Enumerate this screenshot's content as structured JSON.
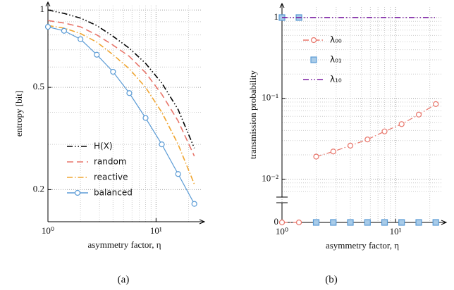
{
  "chart_data": [
    {
      "type": "line",
      "label": "(a)",
      "xlabel": "asymmetry factor, η",
      "ylabel": "entropy [bit]",
      "xscale": "log",
      "yscale": "log",
      "grid": true,
      "legend": "lower left",
      "x": [
        1,
        1.41,
        2,
        2.83,
        4,
        5.66,
        8,
        11.3,
        16,
        22.6
      ],
      "xlim": [
        1,
        26
      ],
      "xticks": [
        {
          "value": 1,
          "label": "10⁰"
        },
        {
          "value": 10,
          "label": "10¹"
        }
      ],
      "ylim": [
        0.15,
        1.04
      ],
      "yticks": [
        0.2,
        0.5,
        1
      ],
      "series": [
        {
          "name": "H(X)",
          "color": "#000000",
          "dash": "8,3,1.5,3,1.5,3",
          "marker": null,
          "values": [
            1.0,
            0.97,
            0.93,
            0.87,
            0.79,
            0.71,
            0.62,
            0.52,
            0.41,
            0.29
          ]
        },
        {
          "name": "random",
          "color": "#e8756a",
          "dash": "9,5",
          "marker": null,
          "values": [
            0.91,
            0.89,
            0.86,
            0.8,
            0.73,
            0.66,
            0.57,
            0.47,
            0.37,
            0.27
          ]
        },
        {
          "name": "reactive",
          "color": "#f0a530",
          "dash": "8,3,1.5,3",
          "marker": null,
          "values": [
            0.87,
            0.85,
            0.81,
            0.75,
            0.67,
            0.59,
            0.5,
            0.4,
            0.3,
            0.21
          ]
        },
        {
          "name": "balanced",
          "color": "#5b9bd5",
          "dash": null,
          "marker": "circle",
          "values": [
            0.86,
            0.83,
            0.77,
            0.67,
            0.575,
            0.475,
            0.38,
            0.3,
            0.23,
            0.176
          ]
        }
      ]
    },
    {
      "type": "line",
      "label": "(b)",
      "xlabel": "asymmetry factor, η",
      "ylabel": "transmission probability",
      "xscale": "log",
      "yscale": "log",
      "y_break": true,
      "grid": true,
      "legend": "upper center",
      "x": [
        1,
        1.41,
        2,
        2.83,
        4,
        5.66,
        8,
        11.3,
        16,
        22.6
      ],
      "xlim": [
        1,
        26
      ],
      "xticks": [
        {
          "value": 1,
          "label": "10⁰"
        },
        {
          "value": 10,
          "label": "10¹"
        }
      ],
      "ylim": [
        0.0065,
        1.35
      ],
      "yticks": [
        0,
        {
          "value": 0.01,
          "label": "10⁻²"
        },
        {
          "value": 0.1,
          "label": "10⁻¹"
        },
        1
      ],
      "series": [
        {
          "name": "λ₀₀",
          "color": "#e8756a",
          "dash": "8,3,1.5,3",
          "marker": "circle",
          "values": [
            0,
            0,
            0.019,
            0.022,
            0.026,
            0.031,
            0.039,
            0.048,
            0.063,
            0.085
          ]
        },
        {
          "name": "λ₀₁",
          "color": "#5b9bd5",
          "dash": "none",
          "marker": "square",
          "values": [
            1,
            1,
            0,
            0,
            0,
            0,
            0,
            0,
            0,
            0
          ]
        },
        {
          "name": "λ₁₀",
          "color": "#7b1fa2",
          "dash": "8,3,1.5,3,1.5,3",
          "marker": null,
          "values": [
            1,
            1,
            1,
            1,
            1,
            1,
            1,
            1,
            1,
            1
          ]
        }
      ]
    }
  ]
}
